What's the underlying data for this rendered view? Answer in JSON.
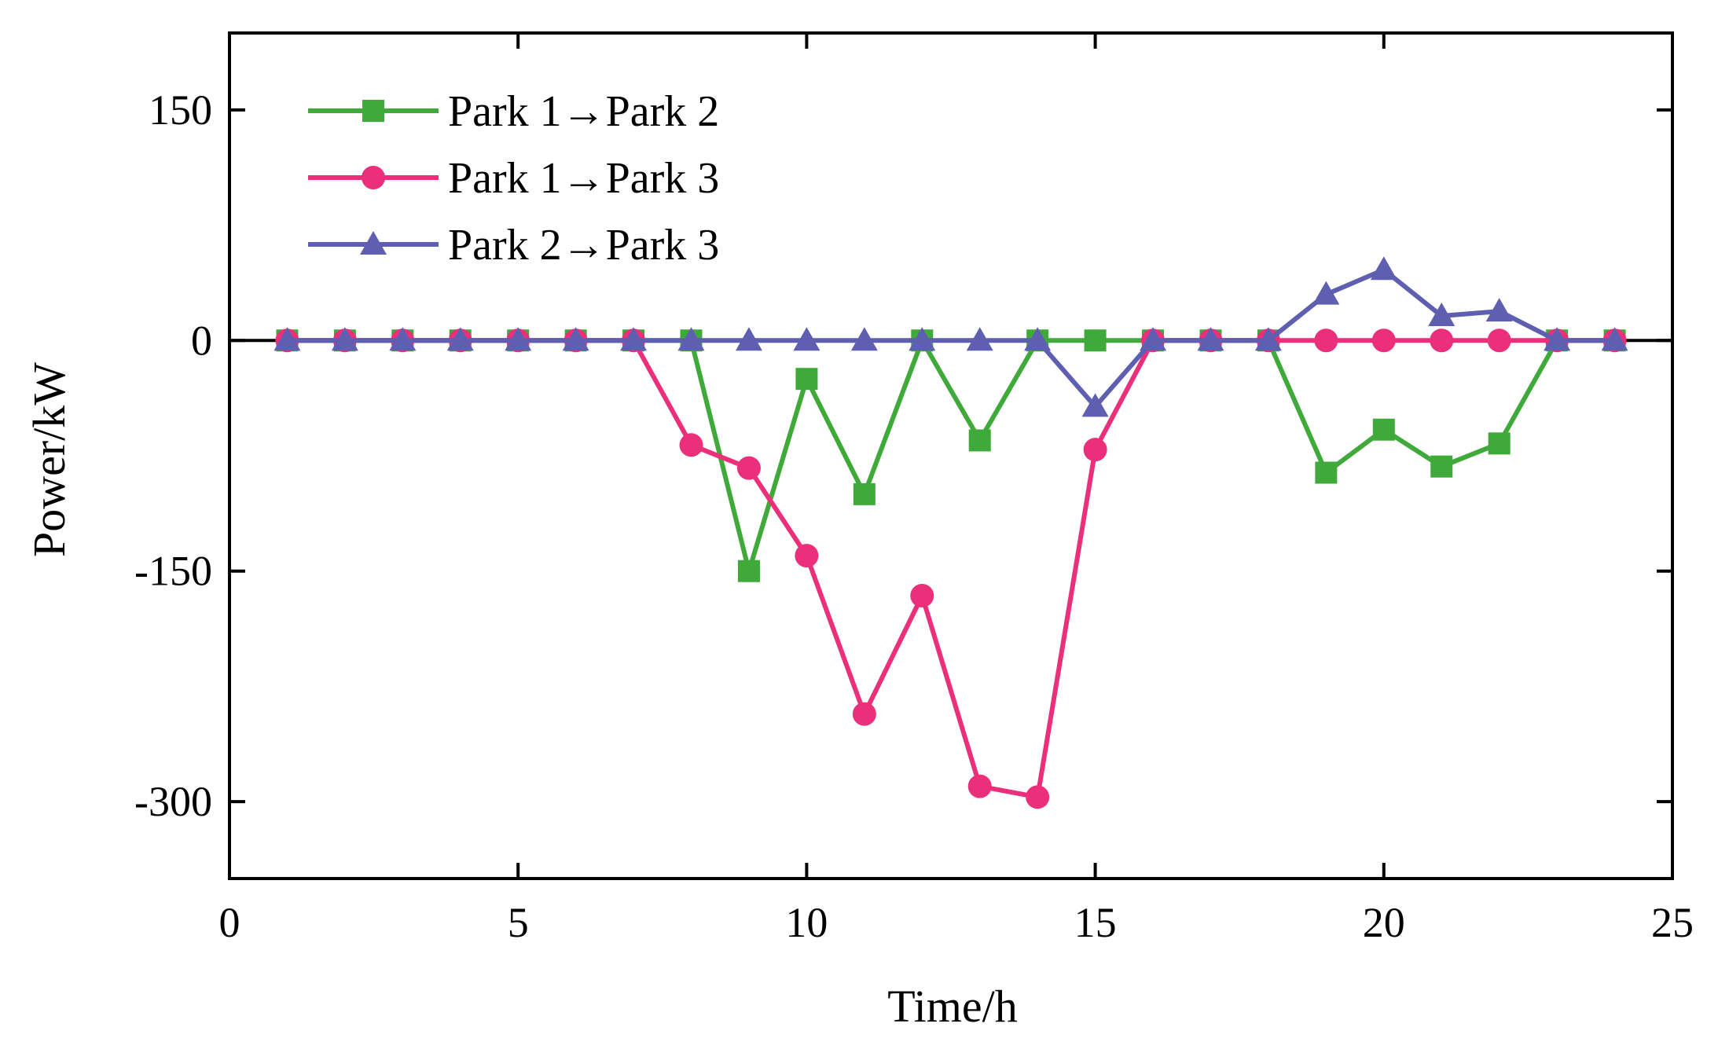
{
  "chart_data": {
    "type": "line",
    "title": "",
    "xlabel": "Time/h",
    "ylabel": "Power/kW",
    "xlim": [
      0,
      25
    ],
    "ylim": [
      -350,
      200
    ],
    "xticks": [
      0,
      5,
      10,
      15,
      20,
      25
    ],
    "yticks": [
      150,
      0,
      -150,
      -300
    ],
    "xtick_labels": [
      "0",
      "5",
      "10",
      "15",
      "20",
      "25"
    ],
    "ytick_labels": [
      "150",
      "0",
      "-150",
      "-300"
    ],
    "grid": false,
    "legend_position": "top-left",
    "x": [
      1,
      2,
      3,
      4,
      5,
      6,
      7,
      8,
      9,
      10,
      11,
      12,
      13,
      14,
      15,
      16,
      17,
      18,
      19,
      20,
      21,
      22,
      23,
      24
    ],
    "series": [
      {
        "name": "Park 1→Park 2",
        "color": "#3faa3a",
        "marker": "square",
        "values": [
          0,
          0,
          0,
          0,
          0,
          0,
          0,
          0,
          -150,
          -25,
          -100,
          0,
          -65,
          0,
          0,
          0,
          0,
          0,
          -86,
          -58,
          -82,
          -67,
          0,
          0
        ]
      },
      {
        "name": "Park 1→Park 3",
        "color": "#ec2f7b",
        "marker": "circle",
        "values": [
          0,
          0,
          0,
          0,
          0,
          0,
          0,
          -68,
          -83,
          -140,
          -243,
          -166,
          -290,
          -297,
          -71,
          0,
          0,
          0,
          0,
          0,
          0,
          0,
          0,
          0
        ]
      },
      {
        "name": "Park 2→Park 3",
        "color": "#5e5fb0",
        "marker": "triangle",
        "values": [
          0,
          0,
          0,
          0,
          0,
          0,
          0,
          0,
          0,
          0,
          0,
          0,
          0,
          0,
          -43,
          0,
          0,
          0,
          30,
          46,
          16,
          19,
          0,
          0
        ]
      }
    ]
  }
}
